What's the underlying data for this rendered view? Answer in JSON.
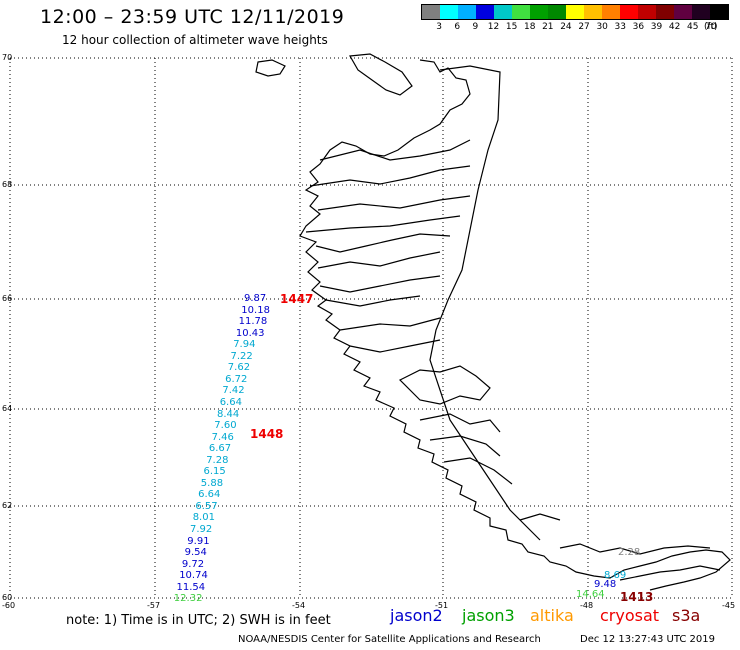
{
  "header": {
    "title": "12:00 – 23:59 UTC 12/11/2019",
    "subtitle": "12 hour collection of altimeter wave heights"
  },
  "scale": {
    "unit": "(ft)",
    "colors": [
      "#808080",
      "#00ffff",
      "#00b0ff",
      "#0000e0",
      "#00c8c8",
      "#40e040",
      "#00a000",
      "#008800",
      "#ffff00",
      "#ffc000",
      "#ff8000",
      "#ff0000",
      "#c00000",
      "#800000",
      "#600040",
      "#200020",
      "#000000"
    ],
    "labels": [
      "3",
      "6",
      "9",
      "12",
      "15",
      "18",
      "21",
      "24",
      "27",
      "30",
      "33",
      "36",
      "39",
      "42",
      "45",
      "70"
    ]
  },
  "axes": {
    "lat_labels": [
      "70",
      "68",
      "66",
      "64",
      "62",
      "60"
    ],
    "lon_labels": [
      "-60",
      "-57",
      "-54",
      "-51",
      "-48",
      "-45"
    ]
  },
  "colors": {
    "jason2": "#0000cc",
    "jason3": "#00a000",
    "altika": "#ff9900",
    "cryosat": "#ee0000",
    "s3a": "#880000",
    "cyan": "#00a8d0",
    "green": "#40d040",
    "gray": "#808080"
  },
  "track_main": {
    "values": [
      "9.87",
      "10.18",
      "11.78",
      "10.43",
      "7.94",
      "7.22",
      "7.62",
      "6.72",
      "7.42",
      "6.64",
      "8.44",
      "7.60",
      "7.46",
      "6.67",
      "7.28",
      "6.15",
      "5.88",
      "6.64",
      "6.57",
      "8.01",
      "7.92",
      "9.91",
      "9.54",
      "9.72",
      "10.74",
      "11.54",
      "12.32"
    ]
  },
  "track_se": {
    "values": [
      "2.28",
      "8.69",
      "9.48",
      "14.64"
    ]
  },
  "passes": [
    "1447",
    "1448",
    "1413"
  ],
  "footer": {
    "note": "note:  1) Time is in UTC;  2) SWH is in feet",
    "satellites": [
      "jason2",
      "jason3",
      "altika",
      "cryosat",
      "s3a"
    ],
    "credit": "NOAA/NESDIS Center for Satellite Applications and Research",
    "timestamp": "Dec 12 13:27:43 UTC 2019"
  }
}
